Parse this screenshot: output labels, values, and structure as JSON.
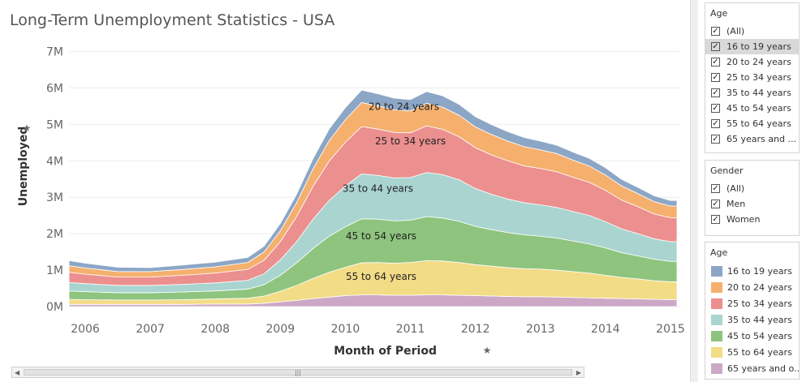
{
  "page_title": "Long-Term Unemployment Statistics - USA",
  "filters": {
    "age": {
      "title": "Age",
      "items": [
        "(All)",
        "16 to 19 years",
        "20 to 24 years",
        "25 to 34 years",
        "35 to 44 years",
        "45 to 54 years",
        "55 to 64 years",
        "65 years and ..."
      ],
      "highlighted": 1
    },
    "gender": {
      "title": "Gender",
      "items": [
        "(All)",
        "Men",
        "Women"
      ]
    }
  },
  "legend": {
    "title": "Age",
    "items": [
      {
        "label": "16 to 19 years",
        "color": "#8ca6c6"
      },
      {
        "label": "20 to 24 years",
        "color": "#f5b06e"
      },
      {
        "label": "25 to 34 years",
        "color": "#ec8f8f"
      },
      {
        "label": "35 to 44 years",
        "color": "#a9d4d0"
      },
      {
        "label": "45 to 54 years",
        "color": "#8ec47e"
      },
      {
        "label": "55 to 64 years",
        "color": "#f3dc86"
      },
      {
        "label": "65 years and o...",
        "color": "#cca8c6"
      }
    ]
  },
  "chart_data": {
    "type": "area",
    "stacked": true,
    "xlabel": "Month of Period",
    "ylabel": "Unemployed",
    "xlim": [
      2005.75,
      2015.15
    ],
    "ylim": [
      0,
      7300000
    ],
    "x_ticks": [
      "2006",
      "2007",
      "2008",
      "2009",
      "2010",
      "2011",
      "2012",
      "2013",
      "2014",
      "2015"
    ],
    "y_ticks": [
      "0M",
      "1M",
      "2M",
      "3M",
      "4M",
      "5M",
      "6M",
      "7M"
    ],
    "y_tick_values": [
      0,
      1000000,
      2000000,
      3000000,
      4000000,
      5000000,
      6000000,
      7000000
    ],
    "x": [
      2005.75,
      2006.0,
      2006.5,
      2007.0,
      2007.5,
      2008.0,
      2008.5,
      2008.75,
      2009.0,
      2009.25,
      2009.5,
      2009.75,
      2010.0,
      2010.25,
      2010.5,
      2010.75,
      2011.0,
      2011.25,
      2011.5,
      2011.75,
      2012.0,
      2012.25,
      2012.5,
      2012.75,
      2013.0,
      2013.25,
      2013.5,
      2013.75,
      2014.0,
      2014.25,
      2014.5,
      2014.75,
      2015.0,
      2015.1
    ],
    "series": [
      {
        "name": "16 to 19 years",
        "values": [
          140000,
          130000,
          120000,
          110000,
          120000,
          130000,
          140000,
          160000,
          200000,
          230000,
          280000,
          320000,
          330000,
          340000,
          330000,
          320000,
          310000,
          320000,
          310000,
          300000,
          280000,
          270000,
          260000,
          250000,
          240000,
          230000,
          220000,
          210000,
          200000,
          180000,
          170000,
          160000,
          150000,
          150000
        ]
      },
      {
        "name": "20 to 24 years",
        "values": [
          180000,
          170000,
          150000,
          150000,
          160000,
          170000,
          190000,
          230000,
          300000,
          380000,
          480000,
          560000,
          620000,
          660000,
          640000,
          620000,
          600000,
          620000,
          610000,
          590000,
          570000,
          560000,
          540000,
          530000,
          510000,
          500000,
          470000,
          450000,
          420000,
          390000,
          360000,
          340000,
          320000,
          320000
        ]
      },
      {
        "name": "25 to 34 years",
        "values": [
          280000,
          260000,
          230000,
          230000,
          250000,
          270000,
          300000,
          370000,
          500000,
          690000,
          900000,
          1080000,
          1200000,
          1300000,
          1270000,
          1250000,
          1230000,
          1280000,
          1240000,
          1180000,
          1120000,
          1080000,
          1050000,
          1010000,
          1000000,
          980000,
          940000,
          910000,
          860000,
          790000,
          740000,
          680000,
          660000,
          660000
        ]
      },
      {
        "name": "35 to 44 years",
        "values": [
          230000,
          220000,
          200000,
          200000,
          210000,
          220000,
          240000,
          300000,
          420000,
          580000,
          800000,
          980000,
          1120000,
          1230000,
          1200000,
          1180000,
          1170000,
          1210000,
          1190000,
          1140000,
          1040000,
          970000,
          920000,
          880000,
          860000,
          840000,
          810000,
          780000,
          720000,
          650000,
          610000,
          560000,
          540000,
          540000
        ]
      },
      {
        "name": "45 to 54 years",
        "values": [
          230000,
          220000,
          200000,
          200000,
          210000,
          220000,
          250000,
          310000,
          440000,
          620000,
          820000,
          990000,
          1110000,
          1210000,
          1190000,
          1160000,
          1160000,
          1210000,
          1180000,
          1130000,
          1050000,
          1000000,
          960000,
          930000,
          900000,
          880000,
          840000,
          800000,
          750000,
          680000,
          630000,
          590000,
          560000,
          560000
        ]
      },
      {
        "name": "55 to 64 years",
        "values": [
          140000,
          130000,
          120000,
          120000,
          130000,
          140000,
          160000,
          200000,
          290000,
          410000,
          550000,
          680000,
          780000,
          880000,
          890000,
          880000,
          900000,
          940000,
          930000,
          900000,
          850000,
          820000,
          790000,
          770000,
          760000,
          740000,
          710000,
          680000,
          630000,
          580000,
          550000,
          510000,
          490000,
          490000
        ]
      },
      {
        "name": "65 years and o...",
        "values": [
          60000,
          60000,
          60000,
          60000,
          60000,
          70000,
          70000,
          90000,
          130000,
          170000,
          220000,
          260000,
          300000,
          320000,
          320000,
          310000,
          310000,
          320000,
          320000,
          310000,
          300000,
          290000,
          280000,
          270000,
          270000,
          260000,
          250000,
          240000,
          230000,
          220000,
          210000,
          200000,
          190000,
          190000
        ]
      }
    ],
    "annotations": [
      {
        "text": "20 to 24 years",
        "x": 2010.9,
        "y": 5400000
      },
      {
        "text": "25 to 34 years",
        "x": 2011.0,
        "y": 4450000
      },
      {
        "text": "35 to 44 years",
        "x": 2010.5,
        "y": 3150000
      },
      {
        "text": "45 to 54 years",
        "x": 2010.55,
        "y": 1850000
      },
      {
        "text": "55 to 64 years",
        "x": 2010.55,
        "y": 730000
      }
    ]
  }
}
